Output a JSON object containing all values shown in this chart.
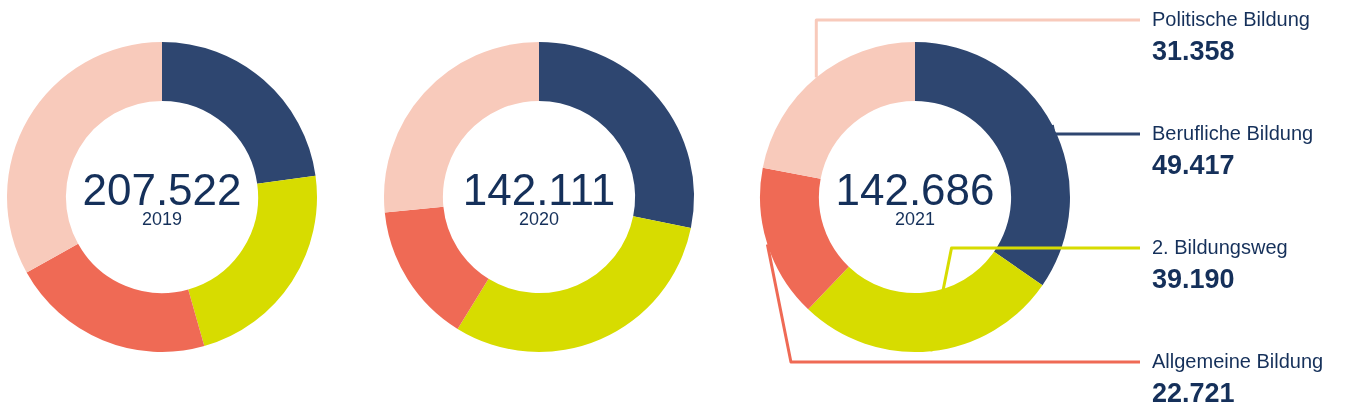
{
  "chart_data": [
    {
      "type": "donut",
      "title": "207.522",
      "subtitle": "2019",
      "categories": [
        null,
        null,
        null,
        null
      ],
      "values": [
        22.8,
        22.8,
        21.3,
        33.1
      ],
      "colors": [
        "#2e4670",
        "#d7dc00",
        "#ef6a55",
        "#f8cabb"
      ],
      "legend": false
    },
    {
      "type": "donut",
      "title": "142.111",
      "subtitle": "2020",
      "categories": [
        null,
        null,
        null,
        null
      ],
      "values": [
        28.2,
        30.6,
        14.6,
        26.6
      ],
      "colors": [
        "#2e4670",
        "#d7dc00",
        "#ef6a55",
        "#f8cabb"
      ],
      "legend": false
    },
    {
      "type": "donut",
      "title": "142.686",
      "subtitle": "2021",
      "categories": [
        "Berufliche Bildung",
        "2. Bildungsweg",
        "Allgemeine Bildung",
        "Politische Bildung"
      ],
      "values": [
        49417,
        39190,
        22721,
        31358
      ],
      "value_labels": [
        "49.417",
        "39.190",
        "22.721",
        "31.358"
      ],
      "colors": [
        "#2e4670",
        "#d7dc00",
        "#ef6a55",
        "#f8cabb"
      ],
      "legend": false
    }
  ]
}
